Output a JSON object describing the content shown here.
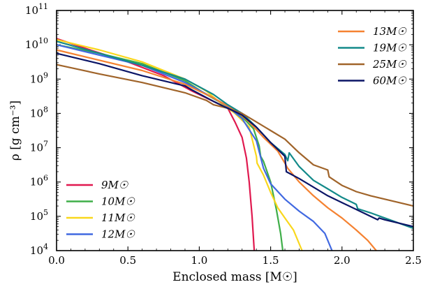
{
  "chart_data": {
    "type": "line",
    "xlabel": "Enclosed mass [M☉]",
    "ylabel": "ρ [g cm⁻³]",
    "xlim": [
      0.0,
      2.5
    ],
    "ylim_log10": [
      4,
      11
    ],
    "y_scale": "log",
    "x_ticks": [
      0.0,
      0.5,
      1.0,
      1.5,
      2.0,
      2.5
    ],
    "x_tick_labels": [
      "0.0",
      "0.5",
      "1.0",
      "1.5",
      "2.0",
      "2.5"
    ],
    "y_tick_exponents": [
      4,
      5,
      6,
      7,
      8,
      9,
      10,
      11
    ],
    "y_tick_base": "10",
    "legend_left": [
      "9M☉",
      "10M☉",
      "11M☉",
      "12M☉"
    ],
    "legend_right": [
      "13M☉",
      "19M☉",
      "25M☉",
      "60M☉"
    ],
    "series": [
      {
        "name": "9M☉",
        "color": "#e0194f",
        "points": [
          [
            0.0,
            10.18
          ],
          [
            0.25,
            9.83
          ],
          [
            0.5,
            9.5
          ],
          [
            0.75,
            9.1
          ],
          [
            0.95,
            8.65
          ],
          [
            1.1,
            8.35
          ],
          [
            1.2,
            8.15
          ],
          [
            1.25,
            7.75
          ],
          [
            1.3,
            7.3
          ],
          [
            1.33,
            6.7
          ],
          [
            1.35,
            6.0
          ],
          [
            1.37,
            5.0
          ],
          [
            1.385,
            4.0
          ]
        ]
      },
      {
        "name": "10M☉",
        "color": "#3fae49",
        "points": [
          [
            0.0,
            10.0
          ],
          [
            0.3,
            9.75
          ],
          [
            0.6,
            9.45
          ],
          [
            0.9,
            8.95
          ],
          [
            1.05,
            8.55
          ],
          [
            1.2,
            8.2
          ],
          [
            1.3,
            7.9
          ],
          [
            1.38,
            7.55
          ],
          [
            1.42,
            7.05
          ],
          [
            1.43,
            6.75
          ],
          [
            1.45,
            6.6
          ],
          [
            1.5,
            6.0
          ],
          [
            1.54,
            5.2
          ],
          [
            1.57,
            4.5
          ],
          [
            1.585,
            4.0
          ]
        ]
      },
      {
        "name": "11M☉",
        "color": "#f9d71c",
        "points": [
          [
            0.0,
            10.15
          ],
          [
            0.3,
            9.85
          ],
          [
            0.6,
            9.5
          ],
          [
            0.9,
            9.0
          ],
          [
            1.05,
            8.65
          ],
          [
            1.15,
            8.3
          ],
          [
            1.25,
            8.0
          ],
          [
            1.35,
            7.6
          ],
          [
            1.4,
            6.75
          ],
          [
            1.405,
            6.55
          ],
          [
            1.45,
            6.2
          ],
          [
            1.5,
            5.7
          ],
          [
            1.55,
            5.25
          ],
          [
            1.6,
            4.95
          ],
          [
            1.66,
            4.6
          ],
          [
            1.72,
            4.0
          ]
        ]
      },
      {
        "name": "12M☉",
        "color": "#4169e1",
        "points": [
          [
            0.0,
            10.0
          ],
          [
            0.3,
            9.7
          ],
          [
            0.6,
            9.4
          ],
          [
            0.9,
            8.9
          ],
          [
            1.1,
            8.45
          ],
          [
            1.2,
            8.2
          ],
          [
            1.3,
            7.85
          ],
          [
            1.4,
            7.2
          ],
          [
            1.45,
            6.4
          ],
          [
            1.5,
            5.95
          ],
          [
            1.6,
            5.5
          ],
          [
            1.7,
            5.15
          ],
          [
            1.8,
            4.85
          ],
          [
            1.88,
            4.5
          ],
          [
            1.93,
            4.0
          ]
        ]
      },
      {
        "name": "13M☉",
        "color": "#f58231",
        "points": [
          [
            0.0,
            9.85
          ],
          [
            0.3,
            9.55
          ],
          [
            0.6,
            9.25
          ],
          [
            0.9,
            8.85
          ],
          [
            1.1,
            8.45
          ],
          [
            1.25,
            8.1
          ],
          [
            1.35,
            7.75
          ],
          [
            1.45,
            7.3
          ],
          [
            1.55,
            6.9
          ],
          [
            1.6,
            6.55
          ],
          [
            1.62,
            6.4
          ],
          [
            1.7,
            6.0
          ],
          [
            1.8,
            5.6
          ],
          [
            1.9,
            5.25
          ],
          [
            2.0,
            4.95
          ],
          [
            2.1,
            4.6
          ],
          [
            2.18,
            4.3
          ],
          [
            2.24,
            4.0
          ]
        ]
      },
      {
        "name": "19M☉",
        "color": "#138a8a",
        "points": [
          [
            0.0,
            10.1
          ],
          [
            0.3,
            9.75
          ],
          [
            0.6,
            9.4
          ],
          [
            0.9,
            9.0
          ],
          [
            1.1,
            8.55
          ],
          [
            1.2,
            8.25
          ],
          [
            1.3,
            8.0
          ],
          [
            1.4,
            7.6
          ],
          [
            1.5,
            7.15
          ],
          [
            1.6,
            6.8
          ],
          [
            1.62,
            6.62
          ],
          [
            1.63,
            6.85
          ],
          [
            1.7,
            6.45
          ],
          [
            1.8,
            6.05
          ],
          [
            1.9,
            5.8
          ],
          [
            2.0,
            5.55
          ],
          [
            2.1,
            5.35
          ],
          [
            2.11,
            5.22
          ],
          [
            2.2,
            5.1
          ],
          [
            2.3,
            4.95
          ],
          [
            2.4,
            4.8
          ],
          [
            2.5,
            4.65
          ]
        ]
      },
      {
        "name": "25M☉",
        "color": "#a0642a",
        "points": [
          [
            0.0,
            9.42
          ],
          [
            0.3,
            9.15
          ],
          [
            0.6,
            8.9
          ],
          [
            0.9,
            8.6
          ],
          [
            1.05,
            8.38
          ],
          [
            1.1,
            8.25
          ],
          [
            1.2,
            8.15
          ],
          [
            1.3,
            8.0
          ],
          [
            1.4,
            7.75
          ],
          [
            1.5,
            7.5
          ],
          [
            1.6,
            7.25
          ],
          [
            1.7,
            6.85
          ],
          [
            1.8,
            6.5
          ],
          [
            1.9,
            6.35
          ],
          [
            1.91,
            6.15
          ],
          [
            2.0,
            5.9
          ],
          [
            2.1,
            5.72
          ],
          [
            2.2,
            5.6
          ],
          [
            2.3,
            5.5
          ],
          [
            2.4,
            5.4
          ],
          [
            2.5,
            5.3
          ]
        ]
      },
      {
        "name": "60M☉",
        "color": "#0b1566",
        "points": [
          [
            0.0,
            9.75
          ],
          [
            0.3,
            9.45
          ],
          [
            0.6,
            9.1
          ],
          [
            0.9,
            8.8
          ],
          [
            0.95,
            8.68
          ],
          [
            1.1,
            8.35
          ],
          [
            1.2,
            8.15
          ],
          [
            1.3,
            7.95
          ],
          [
            1.4,
            7.6
          ],
          [
            1.5,
            7.15
          ],
          [
            1.6,
            6.75
          ],
          [
            1.61,
            6.3
          ],
          [
            1.7,
            6.1
          ],
          [
            1.8,
            5.85
          ],
          [
            1.9,
            5.6
          ],
          [
            2.0,
            5.4
          ],
          [
            2.1,
            5.2
          ],
          [
            2.2,
            5.0
          ],
          [
            2.25,
            4.9
          ],
          [
            2.26,
            4.95
          ],
          [
            2.3,
            4.9
          ],
          [
            2.4,
            4.8
          ],
          [
            2.5,
            4.7
          ]
        ]
      }
    ]
  }
}
